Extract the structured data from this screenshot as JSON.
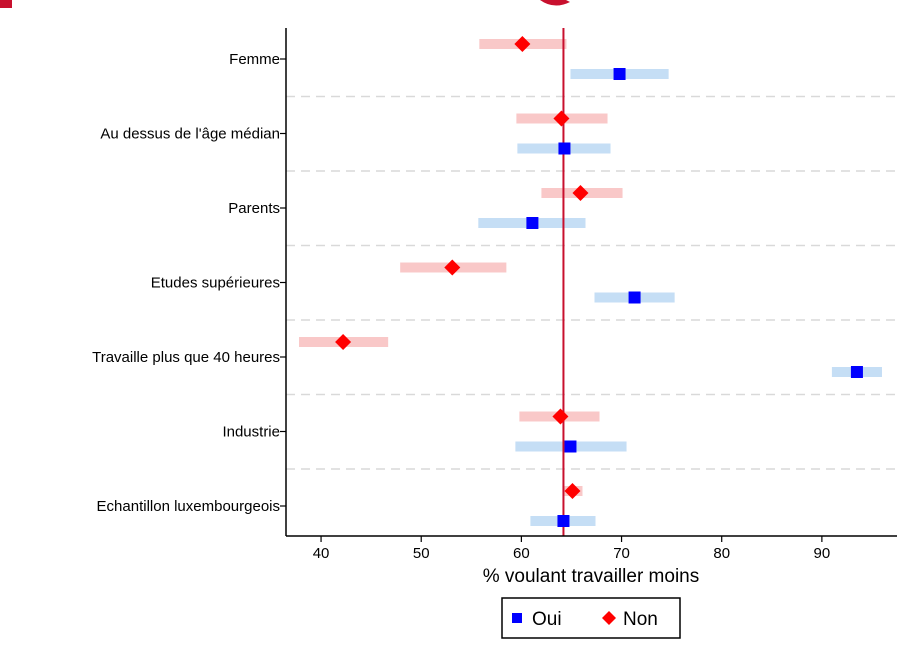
{
  "chart_data": {
    "type": "scatter",
    "subtype": "dot-plot-with-confidence-intervals",
    "title": "",
    "xlabel": "% voulant travailler moins",
    "ylabel": "",
    "xlim": [
      36.5,
      97.5
    ],
    "xticks": [
      40,
      50,
      60,
      70,
      80,
      90
    ],
    "reference_line": {
      "x": 64.2,
      "color": "#c8102e"
    },
    "grid": "horizontal dashed separators between groups",
    "legend_position": "bottom-center",
    "categories": [
      "Femme",
      "Au dessus de l'âge médian",
      "Parents",
      "Etudes supérieures",
      "Travaille plus que 40 heures",
      "Industrie",
      "Echantillon luxembourgeois"
    ],
    "series": [
      {
        "name": "Oui",
        "marker": "square",
        "color": "#0000ff",
        "ci_color": "#c5def5",
        "values": [
          69.8,
          64.3,
          61.1,
          71.3,
          93.5,
          64.9,
          64.2
        ],
        "ci_low": [
          64.9,
          59.6,
          55.7,
          67.3,
          91.0,
          59.4,
          60.9
        ],
        "ci_high": [
          74.7,
          68.9,
          66.4,
          75.3,
          96.0,
          70.5,
          67.4
        ]
      },
      {
        "name": "Non",
        "marker": "diamond",
        "color": "#ff0000",
        "ci_color": "#f9c8c8",
        "values": [
          60.1,
          64.0,
          65.9,
          53.1,
          42.2,
          63.9,
          65.1
        ],
        "ci_low": [
          55.8,
          59.5,
          62.0,
          47.9,
          37.8,
          59.8,
          64.1
        ],
        "ci_high": [
          64.5,
          68.6,
          70.1,
          58.5,
          46.7,
          67.8,
          66.1
        ]
      }
    ]
  }
}
